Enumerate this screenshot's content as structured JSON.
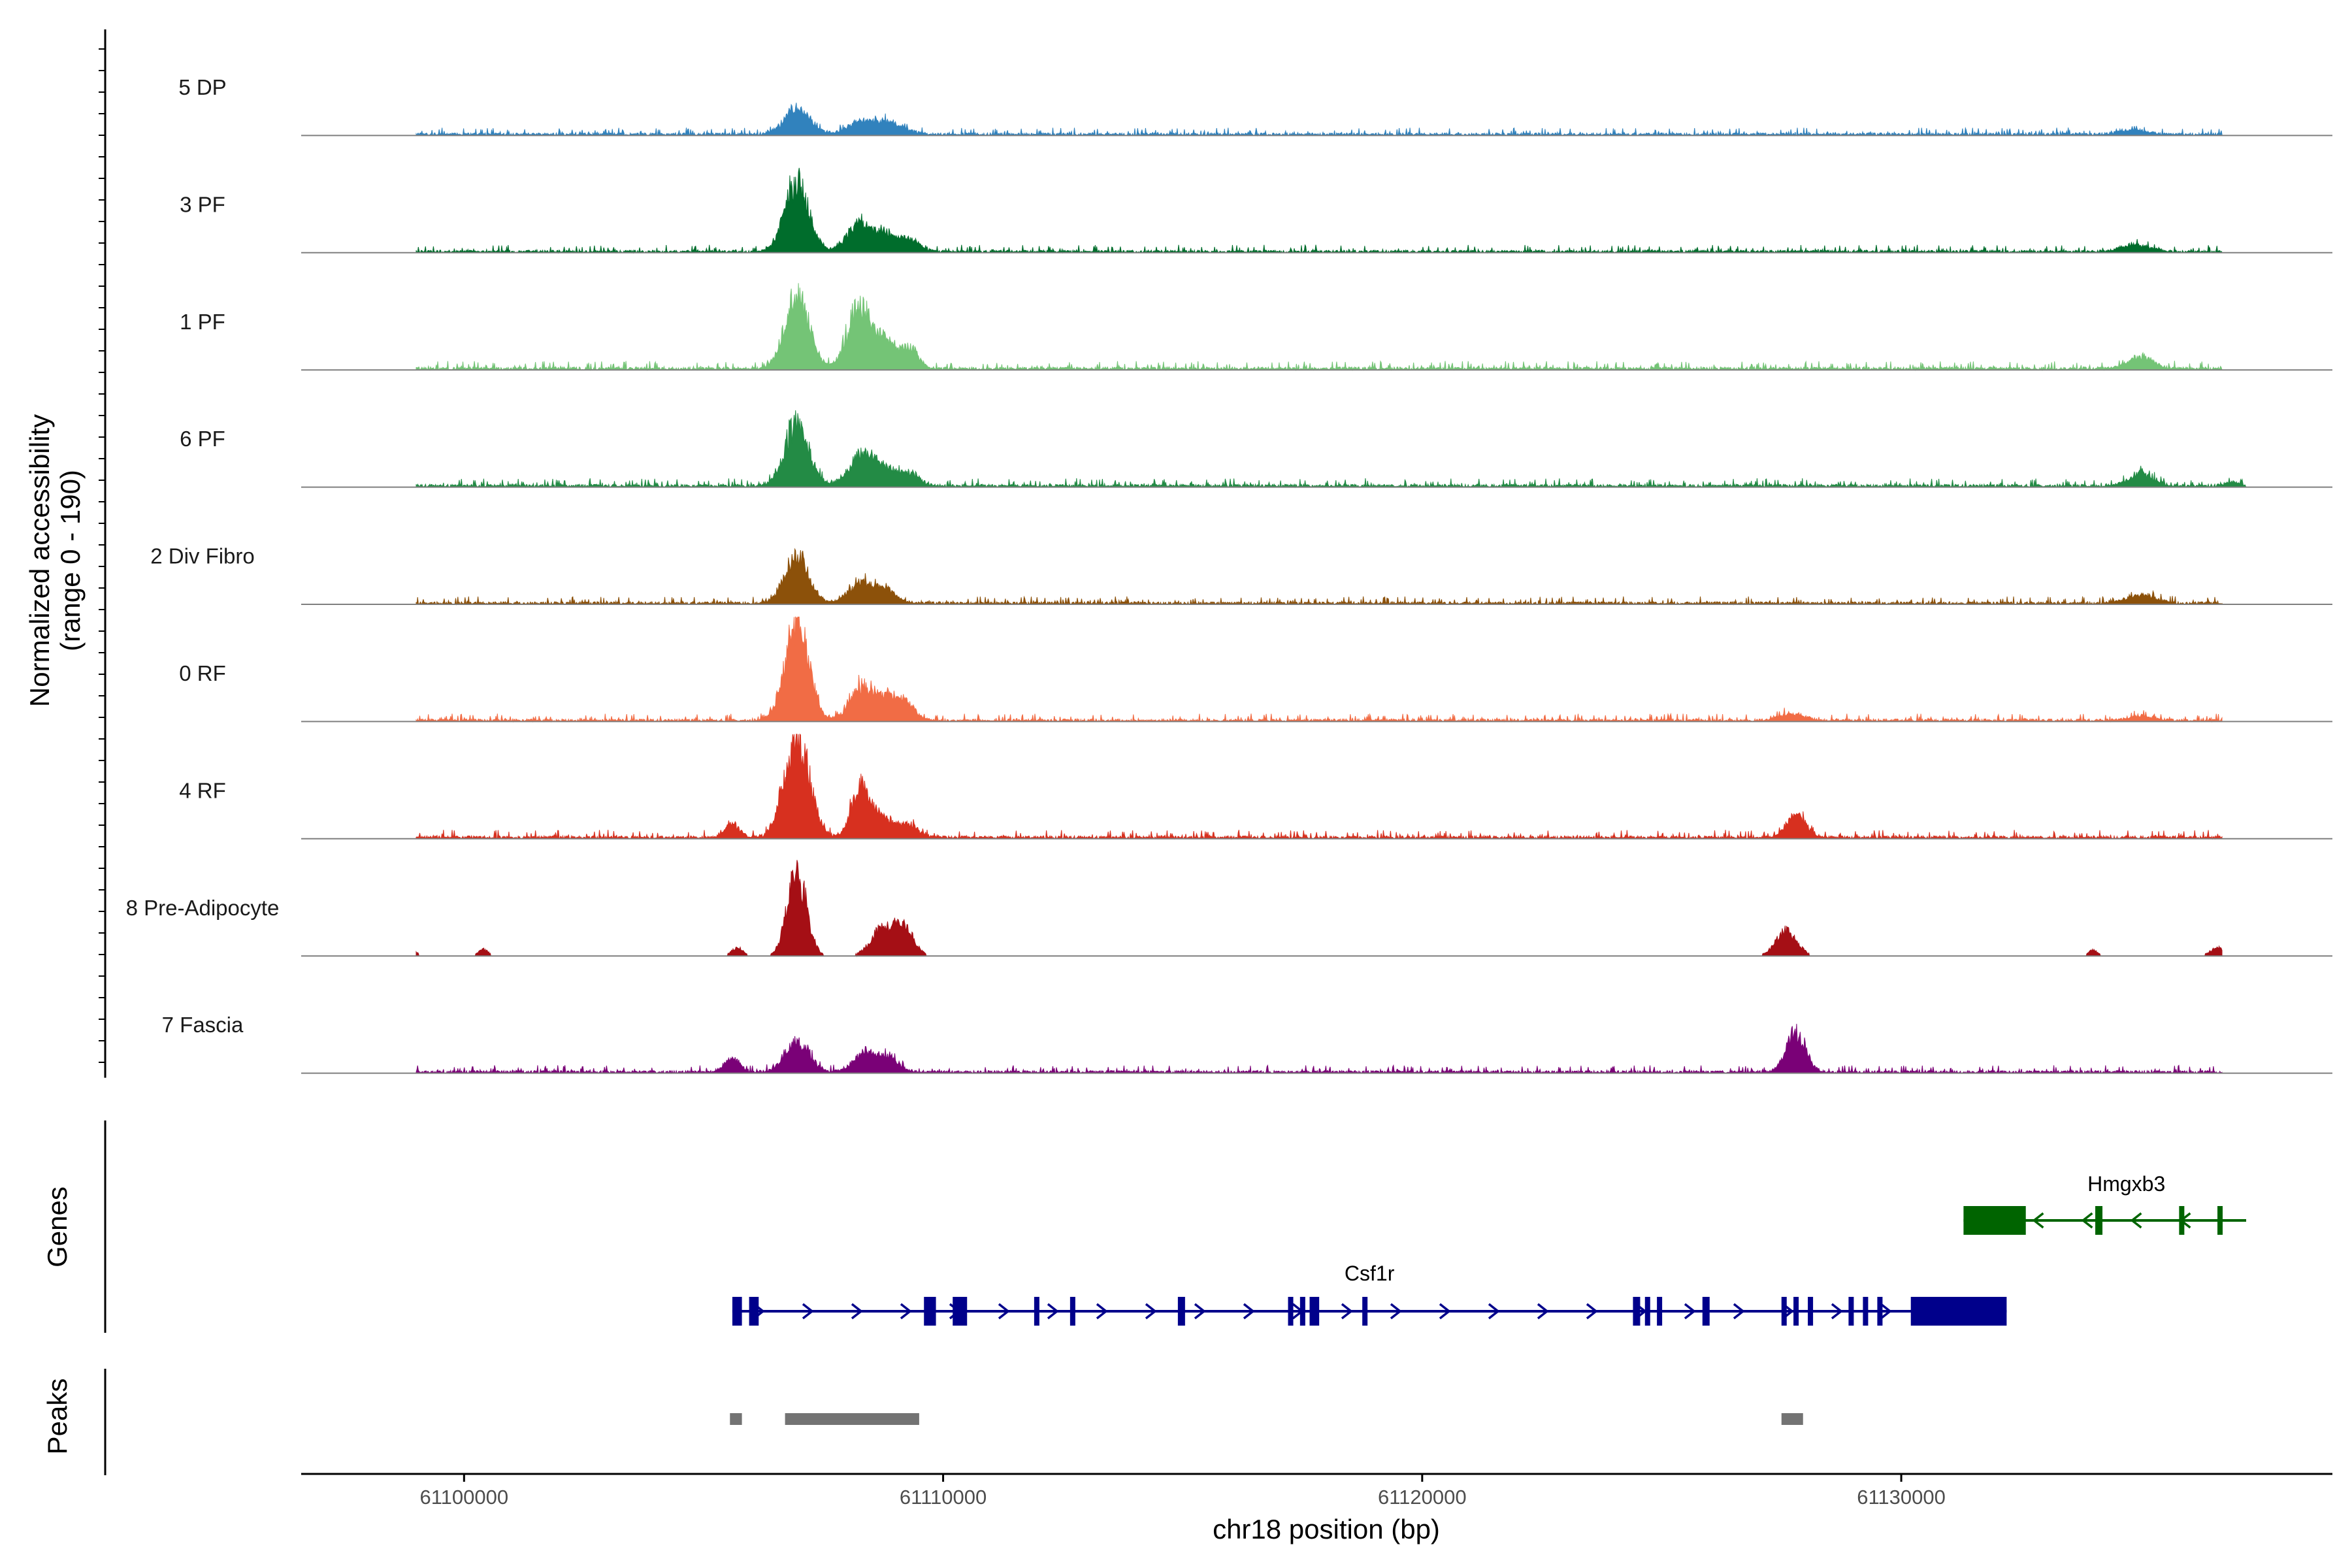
{
  "chart_data": {
    "type": "area",
    "title": "",
    "chromosome": "chr18",
    "xlabel": "chr18 position (bp)",
    "ylabel": "Normalized accessibility",
    "ylabel_range": "(range 0 - 190)",
    "ylim": [
      0,
      190
    ],
    "xlim": [
      61096600,
      61139000
    ],
    "x_ticks": [
      61100000,
      61110000,
      61120000,
      61130000
    ],
    "x_tick_labels": [
      "61100000",
      "61110000",
      "61120000",
      "61130000"
    ],
    "genes_label": "Genes",
    "peaks_label": "Peaks",
    "tracks": [
      {
        "name": "5 DP",
        "color": "#3182bd",
        "baseline": 8,
        "peaks": [
          [
            61106950,
            48,
            260
          ],
          [
            61108300,
            22,
            280
          ],
          [
            61108900,
            20,
            300
          ],
          [
            61134800,
            8,
            300
          ]
        ],
        "noise_from": 61099000,
        "noise_to": 61136700
      },
      {
        "name": "3 PF",
        "color": "#006d2c",
        "baseline": 8,
        "peaks": [
          [
            61106950,
            122,
            250
          ],
          [
            61108250,
            48,
            250
          ],
          [
            61108800,
            30,
            220
          ],
          [
            61109300,
            22,
            200
          ],
          [
            61134900,
            12,
            300
          ]
        ],
        "noise_from": 61099000,
        "noise_to": 61136700
      },
      {
        "name": "1 PF",
        "color": "#74c476",
        "baseline": 9,
        "peaks": [
          [
            61106950,
            132,
            250
          ],
          [
            61108250,
            112,
            240
          ],
          [
            61108800,
            48,
            200
          ],
          [
            61109300,
            38,
            180
          ],
          [
            61135000,
            22,
            250
          ]
        ],
        "noise_from": 61099000,
        "noise_to": 61136700
      },
      {
        "name": "6 PF",
        "color": "#238b45",
        "baseline": 9,
        "peaks": [
          [
            61106950,
            112,
            250
          ],
          [
            61108300,
            56,
            260
          ],
          [
            61108800,
            28,
            220
          ],
          [
            61109300,
            22,
            200
          ],
          [
            61135000,
            22,
            250
          ],
          [
            61136900,
            6,
            150
          ]
        ],
        "noise_from": 61099000,
        "noise_to": 61137200
      },
      {
        "name": "2 Div Fibro",
        "color": "#8c510a",
        "baseline": 8,
        "peaks": [
          [
            61106950,
            82,
            250
          ],
          [
            61108300,
            35,
            260
          ],
          [
            61108800,
            22,
            220
          ],
          [
            61135000,
            14,
            300
          ]
        ],
        "noise_from": 61099000,
        "noise_to": 61136700
      },
      {
        "name": "0 RF",
        "color": "#f16c45",
        "baseline": 8,
        "peaks": [
          [
            61106950,
            170,
            250
          ],
          [
            61108300,
            60,
            240
          ],
          [
            61108800,
            36,
            220
          ],
          [
            61109200,
            30,
            200
          ],
          [
            61127700,
            12,
            250
          ],
          [
            61135000,
            8,
            250
          ]
        ],
        "noise_from": 61099000,
        "noise_to": 61136700
      },
      {
        "name": "4 RF",
        "color": "#d7301f",
        "baseline": 9,
        "peaks": [
          [
            61105600,
            24,
            150
          ],
          [
            61106950,
            185,
            260
          ],
          [
            61108300,
            95,
            200
          ],
          [
            61108800,
            30,
            200
          ],
          [
            61109300,
            24,
            180
          ],
          [
            61127800,
            38,
            200
          ]
        ],
        "noise_from": 61099000,
        "noise_to": 61136700
      },
      {
        "name": "8 Pre-Adipocyte",
        "color": "#a50f15",
        "baseline": 0,
        "peaks": [
          [
            61106950,
            150,
            200
          ],
          [
            61108750,
            50,
            250
          ],
          [
            61109200,
            45,
            200
          ],
          [
            61127600,
            45,
            220
          ],
          [
            61105700,
            15,
            120
          ],
          [
            61098900,
            12,
            100
          ],
          [
            61100400,
            12,
            100
          ],
          [
            61134000,
            10,
            100
          ],
          [
            61136600,
            15,
            150
          ]
        ],
        "noise_from": 61099000,
        "noise_to": 61136700
      },
      {
        "name": "7 Fascia",
        "color": "#7a0177",
        "baseline": 8,
        "peaks": [
          [
            61105600,
            25,
            150
          ],
          [
            61106950,
            55,
            250
          ],
          [
            61108400,
            35,
            260
          ],
          [
            61108900,
            20,
            200
          ],
          [
            61127800,
            70,
            200
          ]
        ],
        "noise_from": 61099000,
        "noise_to": 61136700
      }
    ],
    "genes": [
      {
        "name": "Csf1r",
        "strand": "+",
        "color": "#00008b",
        "start": 61105600,
        "end": 61132200,
        "exons": [
          [
            61105600,
            61105800
          ],
          [
            61105950,
            61106150
          ],
          [
            61109600,
            61109850
          ],
          [
            61110200,
            61110500
          ],
          [
            61111900,
            61112000
          ],
          [
            61112650,
            61112750
          ],
          [
            61114900,
            61115050
          ],
          [
            61117200,
            61117300
          ],
          [
            61117450,
            61117550
          ],
          [
            61117650,
            61117850
          ],
          [
            61118750,
            61118850
          ],
          [
            61124400,
            61124550
          ],
          [
            61124650,
            61124750
          ],
          [
            61124900,
            61125000
          ],
          [
            61125850,
            61126000
          ],
          [
            61127500,
            61127600
          ],
          [
            61127750,
            61127850
          ],
          [
            61128050,
            61128150
          ],
          [
            61128900,
            61129000
          ],
          [
            61129200,
            61129300
          ],
          [
            61129500,
            61129600
          ],
          [
            61130200,
            61130300
          ],
          [
            61130250,
            61132200
          ]
        ]
      },
      {
        "name": "Hmgxb3",
        "strand": "-",
        "color": "#006400",
        "start": 61131300,
        "end": 61137200,
        "exons": [
          [
            61131300,
            61132600
          ],
          [
            61134050,
            61134200
          ],
          [
            61135800,
            61135900
          ],
          [
            61136600,
            61136700
          ]
        ]
      }
    ],
    "peak_regions": [
      [
        61105550,
        61105800
      ],
      [
        61106700,
        61109500
      ],
      [
        61127500,
        61127950
      ]
    ]
  }
}
